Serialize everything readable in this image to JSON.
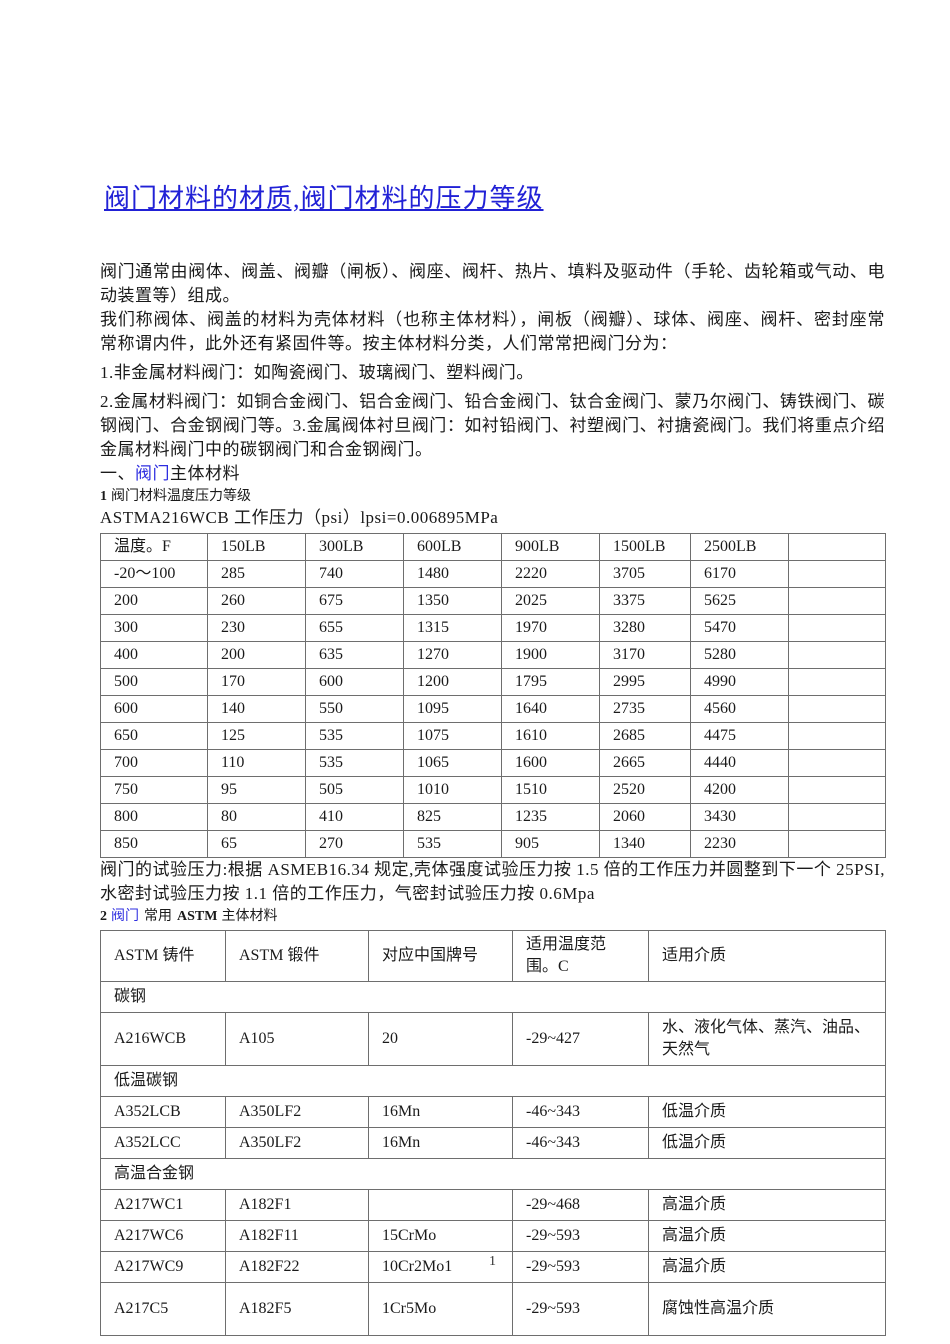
{
  "page": {
    "number": "1"
  },
  "title": {
    "text": "阀门材料的材质,阀门材料的压力等级"
  },
  "colors": {
    "link_blue": "#2121d6",
    "text": "#1a1a1a",
    "table_border": "#6e6e6e"
  },
  "paragraphs": {
    "p1": "阀门通常由阀体、阀盖、阀瓣（闸板）、阀座、阀杆、热片、填料及驱动件（手轮、齿轮箱或气动、电动装置等）组成。",
    "p2": "我们称阀体、阀盖的材料为壳体材料（也称主体材料），闸板（阀瓣）、球体、阀座、阀杆、密封座常常称谓内件，此外还有紧固件等。按主体材料分类，人们常常把阀门分为：",
    "p3": "1.非金属材料阀门：如陶瓷阀门、玻璃阀门、塑料阀门。",
    "p4": "2.金属材料阀门：如铜合金阀门、铝合金阀门、铅合金阀门、钛合金阀门、蒙乃尔阀门、铸铁阀门、碳钢阀门、合金钢阀门等。3.金属阀体衬旦阀门：如衬铅阀门、衬塑阀门、衬搪瓷阀门。我们将重点介绍金属材料阀门中的碳钢阀门和合金钢阀门。",
    "test_pressure": "阀门的试验压力:根据 ASMEB16.34 规定,壳体强度试验压力按 1.5 倍的工作压力并圆整到下一个 25PSI,水密封试验压力按 1.1 倍的工作压力，气密封试验压力按 0.6Mpa"
  },
  "section1": {
    "heading_prefix": "一、",
    "heading_link": "阀门",
    "heading_rest": "主体材料",
    "sub_num": "1",
    "sub_text": "阀门材料温度压力等级",
    "astm_line": "ASTMA216WCB 工作压力（psi）lpsi=0.006895MPa"
  },
  "section2": {
    "num": "2",
    "link": "阀门",
    "mid": "常用",
    "bold": "ASTM",
    "rest": "主体材料"
  },
  "table1": {
    "headers": [
      "温度。F",
      "150LB",
      "300LB",
      "600LB",
      "900LB",
      "1500LB",
      "2500LB",
      ""
    ],
    "rows": [
      [
        "-20〜100",
        "285",
        "740",
        "1480",
        "2220",
        "3705",
        "6170",
        ""
      ],
      [
        "200",
        "260",
        "675",
        "1350",
        "2025",
        "3375",
        "5625",
        ""
      ],
      [
        "300",
        "230",
        "655",
        "1315",
        "1970",
        "3280",
        "5470",
        ""
      ],
      [
        "400",
        "200",
        "635",
        "1270",
        "1900",
        "3170",
        "5280",
        ""
      ],
      [
        "500",
        "170",
        "600",
        "1200",
        "1795",
        "2995",
        "4990",
        ""
      ],
      [
        "600",
        "140",
        "550",
        "1095",
        "1640",
        "2735",
        "4560",
        ""
      ],
      [
        "650",
        "125",
        "535",
        "1075",
        "1610",
        "2685",
        "4475",
        ""
      ],
      [
        "700",
        "110",
        "535",
        "1065",
        "1600",
        "2665",
        "4440",
        ""
      ],
      [
        "750",
        "95",
        "505",
        "1010",
        "1510",
        "2520",
        "4200",
        ""
      ],
      [
        "800",
        "80",
        "410",
        "825",
        "1235",
        "2060",
        "3430",
        ""
      ],
      [
        "850",
        "65",
        "270",
        "535",
        "905",
        "1340",
        "2230",
        ""
      ]
    ]
  },
  "table2": {
    "headers": [
      "ASTM 铸件",
      "ASTM 锻件",
      "对应中国牌号",
      "适用温度范围。C",
      "适用介质"
    ],
    "groups": [
      {
        "label": "碳钢",
        "rows": [
          {
            "cells": [
              "A216WCB",
              "A105",
              "20",
              "-29~427",
              "水、液化气体、蒸汽、油品、天然气"
            ],
            "tall": true
          }
        ]
      },
      {
        "label": "低温碳钢",
        "rows": [
          {
            "cells": [
              "A352LCB",
              "A350LF2",
              "16Mn",
              "-46~343",
              "低温介质"
            ],
            "tall": false
          },
          {
            "cells": [
              "A352LCC",
              "A350LF2",
              "16Mn",
              "-46~343",
              "低温介质"
            ],
            "tall": false
          }
        ]
      },
      {
        "label": "高温合金钢",
        "rows": [
          {
            "cells": [
              "A217WC1",
              "A182F1",
              "",
              "-29~468",
              "高温介质"
            ],
            "tall": false
          },
          {
            "cells": [
              "A217WC6",
              "A182F11",
              "15CrMo",
              "-29~593",
              "高温介质"
            ],
            "tall": false
          },
          {
            "cells": [
              "A217WC9",
              "A182F22",
              "10Cr2Mo1",
              "-29~593",
              "高温介质"
            ],
            "tall": false
          },
          {
            "cells": [
              "A217C5",
              "A182F5",
              "1Cr5Mo",
              "-29~593",
              "腐蚀性高温介质"
            ],
            "tall": true
          }
        ]
      }
    ]
  }
}
